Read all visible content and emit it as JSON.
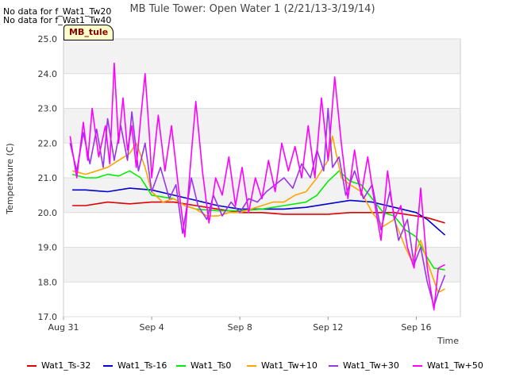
{
  "notes": [
    "No data for f_Wat1_Tw20",
    "No data for f_Wat1_Tw40"
  ],
  "badge": "MB_tule",
  "chart_data": {
    "type": "line",
    "title": "MB Tule Tower: Open Water 1 (2/21/13-3/19/14)",
    "xlabel": "Time",
    "ylabel": "Temperature (C)",
    "ylim": [
      17.0,
      25.0
    ],
    "xlim": [
      0,
      18
    ],
    "yticks": [
      17.0,
      18.0,
      19.0,
      20.0,
      21.0,
      22.0,
      23.0,
      24.0,
      25.0
    ],
    "xticks": [
      {
        "x": 0,
        "label": "Aug 31"
      },
      {
        "x": 4,
        "label": "Sep 4"
      },
      {
        "x": 8,
        "label": "Sep 8"
      },
      {
        "x": 12,
        "label": "Sep 12"
      },
      {
        "x": 16,
        "label": "Sep 16"
      }
    ],
    "grid": true,
    "legend_position": "bottom",
    "series": [
      {
        "name": "Wat1_Ts-32",
        "color": "#dd0000",
        "points": [
          [
            0.4,
            20.2
          ],
          [
            1.0,
            20.2
          ],
          [
            2.0,
            20.3
          ],
          [
            3.0,
            20.25
          ],
          [
            4.0,
            20.3
          ],
          [
            5.0,
            20.3
          ],
          [
            6.0,
            20.2
          ],
          [
            7.0,
            20.1
          ],
          [
            8.0,
            20.0
          ],
          [
            9.0,
            20.0
          ],
          [
            10.0,
            19.95
          ],
          [
            11.0,
            19.95
          ],
          [
            12.0,
            19.95
          ],
          [
            13.0,
            20.0
          ],
          [
            14.0,
            20.0
          ],
          [
            15.0,
            20.0
          ],
          [
            16.0,
            19.9
          ],
          [
            16.5,
            19.85
          ],
          [
            17.3,
            19.7
          ]
        ]
      },
      {
        "name": "Wat1_Ts-16",
        "color": "#0000cc",
        "points": [
          [
            0.4,
            20.65
          ],
          [
            1.0,
            20.65
          ],
          [
            2.0,
            20.6
          ],
          [
            3.0,
            20.7
          ],
          [
            4.0,
            20.65
          ],
          [
            5.0,
            20.5
          ],
          [
            6.0,
            20.35
          ],
          [
            7.0,
            20.2
          ],
          [
            8.0,
            20.1
          ],
          [
            9.0,
            20.1
          ],
          [
            10.0,
            20.1
          ],
          [
            11.0,
            20.15
          ],
          [
            12.0,
            20.25
          ],
          [
            13.0,
            20.35
          ],
          [
            14.0,
            20.3
          ],
          [
            15.0,
            20.15
          ],
          [
            16.0,
            20.0
          ],
          [
            16.5,
            19.8
          ],
          [
            17.3,
            19.35
          ]
        ]
      },
      {
        "name": "Wat1_Ts0",
        "color": "#00ee00",
        "points": [
          [
            0.4,
            21.1
          ],
          [
            1.0,
            21.0
          ],
          [
            1.5,
            21.0
          ],
          [
            2.0,
            21.1
          ],
          [
            2.5,
            21.05
          ],
          [
            3.0,
            21.2
          ],
          [
            3.5,
            21.0
          ],
          [
            4.0,
            20.5
          ],
          [
            5.0,
            20.4
          ],
          [
            5.5,
            20.2
          ],
          [
            6.0,
            20.1
          ],
          [
            7.0,
            20.05
          ],
          [
            8.0,
            20.05
          ],
          [
            9.0,
            20.1
          ],
          [
            10.0,
            20.2
          ],
          [
            11.0,
            20.3
          ],
          [
            11.5,
            20.5
          ],
          [
            12.0,
            20.9
          ],
          [
            12.5,
            21.2
          ],
          [
            13.0,
            20.9
          ],
          [
            13.5,
            20.8
          ],
          [
            14.0,
            20.4
          ],
          [
            14.5,
            20.0
          ],
          [
            15.0,
            19.9
          ],
          [
            15.5,
            19.5
          ],
          [
            16.0,
            19.3
          ],
          [
            16.4,
            18.8
          ],
          [
            16.8,
            18.4
          ],
          [
            17.3,
            18.35
          ]
        ]
      },
      {
        "name": "Wat1_Tw+10",
        "color": "#ffa500",
        "points": [
          [
            0.4,
            21.2
          ],
          [
            1.0,
            21.1
          ],
          [
            1.5,
            21.2
          ],
          [
            2.0,
            21.3
          ],
          [
            2.5,
            21.5
          ],
          [
            3.0,
            21.7
          ],
          [
            3.3,
            22.0
          ],
          [
            3.7,
            21.3
          ],
          [
            4.0,
            20.6
          ],
          [
            4.5,
            20.3
          ],
          [
            5.0,
            20.4
          ],
          [
            5.5,
            20.2
          ],
          [
            6.0,
            20.1
          ],
          [
            6.5,
            19.9
          ],
          [
            7.0,
            19.9
          ],
          [
            7.5,
            20.0
          ],
          [
            8.0,
            20.0
          ],
          [
            8.5,
            20.1
          ],
          [
            9.0,
            20.2
          ],
          [
            9.5,
            20.3
          ],
          [
            10.0,
            20.3
          ],
          [
            10.5,
            20.5
          ],
          [
            11.0,
            20.6
          ],
          [
            11.5,
            21.0
          ],
          [
            12.0,
            21.5
          ],
          [
            12.2,
            22.2
          ],
          [
            12.6,
            21.0
          ],
          [
            13.0,
            20.8
          ],
          [
            13.5,
            20.6
          ],
          [
            14.0,
            20.0
          ],
          [
            14.5,
            19.6
          ],
          [
            15.0,
            19.8
          ],
          [
            15.5,
            19.0
          ],
          [
            15.8,
            18.6
          ],
          [
            16.2,
            19.2
          ],
          [
            16.6,
            18.4
          ],
          [
            17.0,
            17.7
          ],
          [
            17.3,
            17.8
          ]
        ]
      },
      {
        "name": "Wat1_Tw+30",
        "color": "#9933ee",
        "points": [
          [
            0.3,
            22.0
          ],
          [
            0.6,
            21.2
          ],
          [
            0.9,
            22.3
          ],
          [
            1.2,
            21.4
          ],
          [
            1.5,
            22.4
          ],
          [
            1.8,
            21.3
          ],
          [
            2.0,
            22.7
          ],
          [
            2.3,
            21.5
          ],
          [
            2.6,
            22.5
          ],
          [
            2.9,
            21.5
          ],
          [
            3.1,
            22.9
          ],
          [
            3.4,
            21.2
          ],
          [
            3.7,
            22.0
          ],
          [
            4.0,
            20.6
          ],
          [
            4.4,
            21.3
          ],
          [
            4.8,
            20.4
          ],
          [
            5.1,
            20.8
          ],
          [
            5.4,
            19.4
          ],
          [
            5.8,
            21.0
          ],
          [
            6.1,
            20.2
          ],
          [
            6.5,
            19.8
          ],
          [
            6.8,
            20.5
          ],
          [
            7.2,
            19.9
          ],
          [
            7.6,
            20.3
          ],
          [
            8.0,
            20.0
          ],
          [
            8.4,
            20.4
          ],
          [
            8.8,
            20.3
          ],
          [
            9.2,
            20.6
          ],
          [
            9.6,
            20.8
          ],
          [
            10.0,
            21.0
          ],
          [
            10.4,
            20.7
          ],
          [
            10.8,
            21.4
          ],
          [
            11.2,
            21.0
          ],
          [
            11.5,
            21.8
          ],
          [
            11.8,
            21.2
          ],
          [
            12.0,
            23.0
          ],
          [
            12.2,
            21.3
          ],
          [
            12.5,
            21.6
          ],
          [
            12.8,
            20.5
          ],
          [
            13.2,
            21.2
          ],
          [
            13.6,
            20.4
          ],
          [
            14.0,
            20.8
          ],
          [
            14.4,
            19.5
          ],
          [
            14.8,
            20.6
          ],
          [
            15.2,
            19.2
          ],
          [
            15.6,
            19.8
          ],
          [
            15.9,
            18.5
          ],
          [
            16.2,
            19.0
          ],
          [
            16.5,
            18.0
          ],
          [
            16.8,
            17.3
          ],
          [
            17.0,
            17.7
          ],
          [
            17.3,
            18.2
          ]
        ]
      },
      {
        "name": "Wat1_Tw+50",
        "color": "#ff00ff",
        "points": [
          [
            0.3,
            22.2
          ],
          [
            0.6,
            21.0
          ],
          [
            0.9,
            22.6
          ],
          [
            1.1,
            21.5
          ],
          [
            1.3,
            23.0
          ],
          [
            1.6,
            21.6
          ],
          [
            1.9,
            22.5
          ],
          [
            2.1,
            21.4
          ],
          [
            2.3,
            24.3
          ],
          [
            2.5,
            22.0
          ],
          [
            2.7,
            23.3
          ],
          [
            2.9,
            21.8
          ],
          [
            3.1,
            22.5
          ],
          [
            3.3,
            21.3
          ],
          [
            3.5,
            22.7
          ],
          [
            3.7,
            24.0
          ],
          [
            3.9,
            22.2
          ],
          [
            4.0,
            21.0
          ],
          [
            4.3,
            22.8
          ],
          [
            4.6,
            21.2
          ],
          [
            4.9,
            22.5
          ],
          [
            5.2,
            20.8
          ],
          [
            5.5,
            19.3
          ],
          [
            5.8,
            21.7
          ],
          [
            6.0,
            23.2
          ],
          [
            6.3,
            21.2
          ],
          [
            6.6,
            19.7
          ],
          [
            6.9,
            21.0
          ],
          [
            7.2,
            20.5
          ],
          [
            7.5,
            21.6
          ],
          [
            7.8,
            20.2
          ],
          [
            8.1,
            21.3
          ],
          [
            8.4,
            20.0
          ],
          [
            8.7,
            21.0
          ],
          [
            9.0,
            20.4
          ],
          [
            9.3,
            21.5
          ],
          [
            9.6,
            20.6
          ],
          [
            9.9,
            22.0
          ],
          [
            10.2,
            21.2
          ],
          [
            10.5,
            21.9
          ],
          [
            10.8,
            21.0
          ],
          [
            11.1,
            22.5
          ],
          [
            11.4,
            21.0
          ],
          [
            11.7,
            23.3
          ],
          [
            12.0,
            21.5
          ],
          [
            12.3,
            23.9
          ],
          [
            12.6,
            22.0
          ],
          [
            12.9,
            20.4
          ],
          [
            13.2,
            21.8
          ],
          [
            13.5,
            20.5
          ],
          [
            13.8,
            21.6
          ],
          [
            14.1,
            20.3
          ],
          [
            14.4,
            19.2
          ],
          [
            14.7,
            21.2
          ],
          [
            15.0,
            19.8
          ],
          [
            15.3,
            20.2
          ],
          [
            15.6,
            19.0
          ],
          [
            15.9,
            18.4
          ],
          [
            16.2,
            20.7
          ],
          [
            16.5,
            18.4
          ],
          [
            16.8,
            17.2
          ],
          [
            17.0,
            18.4
          ],
          [
            17.3,
            18.5
          ]
        ]
      }
    ]
  }
}
